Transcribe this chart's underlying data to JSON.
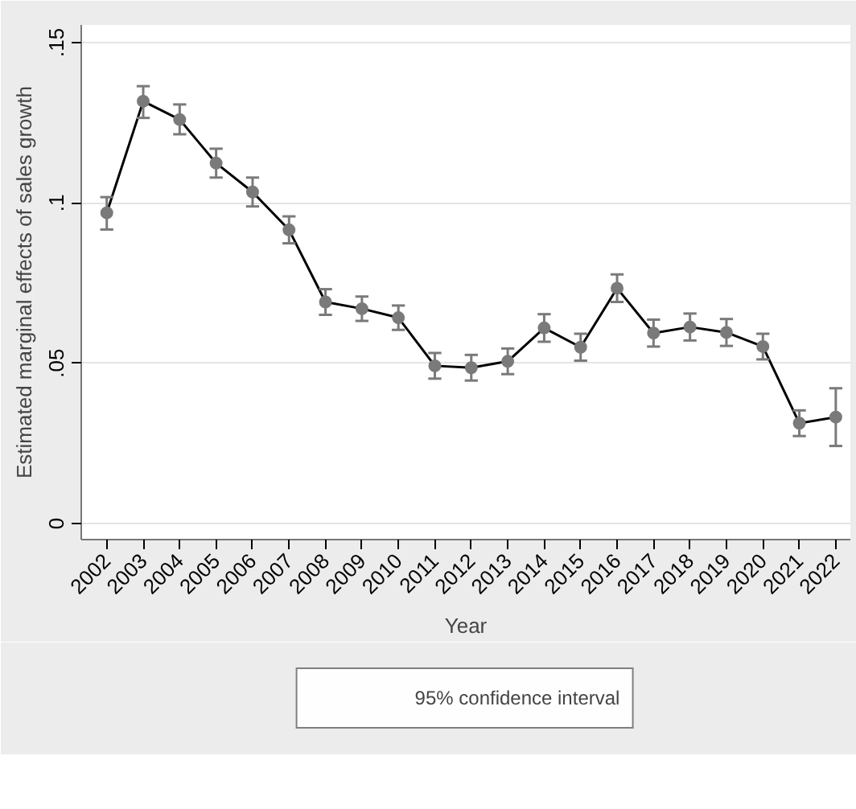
{
  "chart_data": {
    "type": "line",
    "xlabel": "Year",
    "ylabel": "Estimated marginal effects of sales growth",
    "x": [
      2002,
      2003,
      2004,
      2005,
      2006,
      2007,
      2008,
      2009,
      2010,
      2011,
      2012,
      2013,
      2014,
      2015,
      2016,
      2017,
      2018,
      2019,
      2020,
      2021,
      2022
    ],
    "series": [
      {
        "name": "95% confidence interval",
        "color": "#7a7a7a",
        "values": [
          0.0969,
          0.1317,
          0.126,
          0.1124,
          0.1034,
          0.0916,
          0.0691,
          0.067,
          0.0642,
          0.0492,
          0.0486,
          0.0506,
          0.061,
          0.055,
          0.0734,
          0.0594,
          0.0613,
          0.0596,
          0.0552,
          0.0313,
          0.0332
        ],
        "errors": [
          [
            0.0917,
            0.1018
          ],
          [
            0.1265,
            0.1364
          ],
          [
            0.1214,
            0.1307
          ],
          0.0045,
          0.0045,
          0.0042,
          0.004,
          0.0038,
          0.0038,
          0.004,
          0.004,
          0.004,
          0.0043,
          0.0042,
          0.0043,
          0.0042,
          0.0042,
          0.0042,
          0.004,
          0.004,
          [
            0.0242,
            0.0422
          ]
        ]
      }
    ],
    "xlim": [
      2001.3,
      2022.4
    ],
    "ylim": [
      -0.005,
      0.1555
    ],
    "xticks": [
      2002,
      2003,
      2004,
      2005,
      2006,
      2007,
      2008,
      2009,
      2010,
      2011,
      2012,
      2013,
      2014,
      2015,
      2016,
      2017,
      2018,
      2019,
      2020,
      2021,
      2022
    ],
    "yticks": [
      {
        "value": 0,
        "label": "0"
      },
      {
        "value": 0.05,
        "label": ".05"
      },
      {
        "value": 0.1,
        "label": ".1"
      },
      {
        "value": 0.15,
        "label": ".15"
      }
    ],
    "grid": "y",
    "legend": "bottom",
    "marker": "circle",
    "line_style": "solid"
  }
}
